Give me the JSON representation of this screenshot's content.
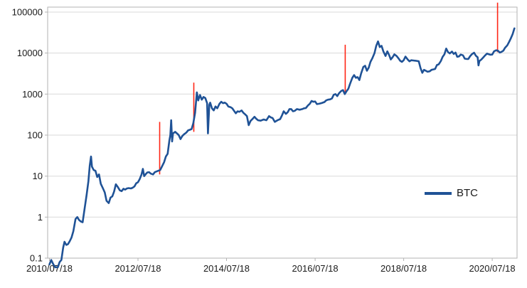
{
  "chart_data": {
    "type": "line",
    "title": "",
    "legend": {
      "label": "BTC",
      "position": "right-center"
    },
    "x_axis": {
      "scale": "time",
      "range": [
        2010.5,
        2021.1
      ],
      "tick_positions": [
        2010.54,
        2012.54,
        2014.54,
        2016.54,
        2018.54,
        2020.54
      ],
      "tick_labels": [
        "2010/07/18",
        "2012/07/18",
        "2014/07/18",
        "2016/07/18",
        "2018/07/18",
        "2020/07/18"
      ]
    },
    "y_axis": {
      "scale": "log",
      "range": [
        0.1,
        132000
      ],
      "tick_values": [
        0.1,
        1,
        10,
        100,
        1000,
        10000,
        100000
      ],
      "tick_labels": [
        "0.1",
        "1",
        "10",
        "100",
        "1000",
        "10000",
        "100000"
      ]
    },
    "series": [
      {
        "name": "BTC",
        "color": "#1f5296",
        "width": 2.6,
        "points": [
          [
            2010.54,
            0.07
          ],
          [
            2010.58,
            0.09
          ],
          [
            2010.63,
            0.07
          ],
          [
            2010.67,
            0.06
          ],
          [
            2010.73,
            0.06
          ],
          [
            2010.77,
            0.08
          ],
          [
            2010.81,
            0.09
          ],
          [
            2010.85,
            0.18
          ],
          [
            2010.88,
            0.25
          ],
          [
            2010.92,
            0.21
          ],
          [
            2010.96,
            0.22
          ],
          [
            2011.0,
            0.26
          ],
          [
            2011.04,
            0.32
          ],
          [
            2011.08,
            0.45
          ],
          [
            2011.13,
            0.9
          ],
          [
            2011.17,
            1.0
          ],
          [
            2011.21,
            0.85
          ],
          [
            2011.25,
            0.78
          ],
          [
            2011.29,
            0.75
          ],
          [
            2011.33,
            1.5
          ],
          [
            2011.38,
            3.5
          ],
          [
            2011.42,
            7.5
          ],
          [
            2011.45,
            18
          ],
          [
            2011.48,
            30
          ],
          [
            2011.5,
            17
          ],
          [
            2011.54,
            14
          ],
          [
            2011.58,
            13.5
          ],
          [
            2011.62,
            9.5
          ],
          [
            2011.66,
            11
          ],
          [
            2011.7,
            6.5
          ],
          [
            2011.75,
            5
          ],
          [
            2011.79,
            4
          ],
          [
            2011.83,
            2.5
          ],
          [
            2011.88,
            2.2
          ],
          [
            2011.92,
            3
          ],
          [
            2011.96,
            3.2
          ],
          [
            2012.0,
            4.2
          ],
          [
            2012.04,
            6.3
          ],
          [
            2012.08,
            5.5
          ],
          [
            2012.13,
            4.5
          ],
          [
            2012.17,
            4.3
          ],
          [
            2012.21,
            4.9
          ],
          [
            2012.25,
            4.7
          ],
          [
            2012.29,
            5
          ],
          [
            2012.33,
            5.1
          ],
          [
            2012.38,
            5
          ],
          [
            2012.42,
            5.2
          ],
          [
            2012.46,
            5.6
          ],
          [
            2012.5,
            6.7
          ],
          [
            2012.54,
            7.1
          ],
          [
            2012.58,
            8.5
          ],
          [
            2012.62,
            11
          ],
          [
            2012.65,
            15
          ],
          [
            2012.68,
            10
          ],
          [
            2012.71,
            11
          ],
          [
            2012.75,
            12.3
          ],
          [
            2012.79,
            12.5
          ],
          [
            2012.83,
            11.5
          ],
          [
            2012.88,
            11
          ],
          [
            2012.92,
            12.5
          ],
          [
            2012.96,
            13
          ],
          [
            2013.0,
            13.5
          ],
          [
            2013.04,
            14
          ],
          [
            2013.08,
            17
          ],
          [
            2013.13,
            22
          ],
          [
            2013.17,
            30
          ],
          [
            2013.21,
            35
          ],
          [
            2013.25,
            75
          ],
          [
            2013.27,
            100
          ],
          [
            2013.29,
            230
          ],
          [
            2013.31,
            70
          ],
          [
            2013.33,
            110
          ],
          [
            2013.38,
            120
          ],
          [
            2013.42,
            110
          ],
          [
            2013.46,
            100
          ],
          [
            2013.5,
            80
          ],
          [
            2013.54,
            95
          ],
          [
            2013.58,
            105
          ],
          [
            2013.63,
            115
          ],
          [
            2013.67,
            130
          ],
          [
            2013.71,
            135
          ],
          [
            2013.75,
            140
          ],
          [
            2013.79,
            195
          ],
          [
            2013.83,
            350
          ],
          [
            2013.87,
            1100
          ],
          [
            2013.9,
            700
          ],
          [
            2013.94,
            950
          ],
          [
            2013.98,
            730
          ],
          [
            2014.02,
            850
          ],
          [
            2014.06,
            800
          ],
          [
            2014.1,
            600
          ],
          [
            2014.12,
            110
          ],
          [
            2014.15,
            550
          ],
          [
            2014.17,
            620
          ],
          [
            2014.21,
            450
          ],
          [
            2014.25,
            400
          ],
          [
            2014.29,
            500
          ],
          [
            2014.33,
            450
          ],
          [
            2014.38,
            580
          ],
          [
            2014.42,
            650
          ],
          [
            2014.46,
            600
          ],
          [
            2014.5,
            620
          ],
          [
            2014.54,
            580
          ],
          [
            2014.58,
            500
          ],
          [
            2014.63,
            480
          ],
          [
            2014.67,
            450
          ],
          [
            2014.71,
            390
          ],
          [
            2014.75,
            340
          ],
          [
            2014.79,
            380
          ],
          [
            2014.83,
            370
          ],
          [
            2014.88,
            400
          ],
          [
            2014.92,
            350
          ],
          [
            2014.96,
            320
          ],
          [
            2015.0,
            290
          ],
          [
            2015.04,
            175
          ],
          [
            2015.08,
            220
          ],
          [
            2015.13,
            250
          ],
          [
            2015.17,
            280
          ],
          [
            2015.21,
            250
          ],
          [
            2015.25,
            230
          ],
          [
            2015.31,
            225
          ],
          [
            2015.38,
            240
          ],
          [
            2015.44,
            230
          ],
          [
            2015.5,
            290
          ],
          [
            2015.54,
            270
          ],
          [
            2015.58,
            260
          ],
          [
            2015.63,
            210
          ],
          [
            2015.69,
            230
          ],
          [
            2015.75,
            245
          ],
          [
            2015.79,
            300
          ],
          [
            2015.83,
            380
          ],
          [
            2015.88,
            330
          ],
          [
            2015.92,
            360
          ],
          [
            2015.96,
            430
          ],
          [
            2016.0,
            430
          ],
          [
            2016.04,
            380
          ],
          [
            2016.08,
            390
          ],
          [
            2016.13,
            430
          ],
          [
            2016.19,
            415
          ],
          [
            2016.25,
            430
          ],
          [
            2016.29,
            450
          ],
          [
            2016.33,
            455
          ],
          [
            2016.38,
            530
          ],
          [
            2016.42,
            580
          ],
          [
            2016.46,
            680
          ],
          [
            2016.5,
            650
          ],
          [
            2016.54,
            660
          ],
          [
            2016.58,
            570
          ],
          [
            2016.63,
            580
          ],
          [
            2016.69,
            605
          ],
          [
            2016.75,
            640
          ],
          [
            2016.79,
            700
          ],
          [
            2016.83,
            730
          ],
          [
            2016.88,
            745
          ],
          [
            2016.92,
            780
          ],
          [
            2016.96,
            960
          ],
          [
            2017.0,
            1000
          ],
          [
            2017.04,
            890
          ],
          [
            2017.08,
            1050
          ],
          [
            2017.13,
            1190
          ],
          [
            2017.17,
            1250
          ],
          [
            2017.21,
            1000
          ],
          [
            2017.25,
            1180
          ],
          [
            2017.29,
            1350
          ],
          [
            2017.33,
            1800
          ],
          [
            2017.38,
            2500
          ],
          [
            2017.42,
            2900
          ],
          [
            2017.46,
            2500
          ],
          [
            2017.5,
            2600
          ],
          [
            2017.54,
            2200
          ],
          [
            2017.58,
            3200
          ],
          [
            2017.63,
            4600
          ],
          [
            2017.67,
            4900
          ],
          [
            2017.71,
            3700
          ],
          [
            2017.75,
            4400
          ],
          [
            2017.79,
            6100
          ],
          [
            2017.83,
            7400
          ],
          [
            2017.88,
            9900
          ],
          [
            2017.92,
            15000
          ],
          [
            2017.96,
            19300
          ],
          [
            2018.0,
            14000
          ],
          [
            2018.04,
            15000
          ],
          [
            2018.08,
            11000
          ],
          [
            2018.13,
            8500
          ],
          [
            2018.17,
            11000
          ],
          [
            2018.21,
            9000
          ],
          [
            2018.25,
            7000
          ],
          [
            2018.29,
            7900
          ],
          [
            2018.33,
            9300
          ],
          [
            2018.38,
            8500
          ],
          [
            2018.42,
            7500
          ],
          [
            2018.46,
            6500
          ],
          [
            2018.5,
            6100
          ],
          [
            2018.54,
            6700
          ],
          [
            2018.58,
            8200
          ],
          [
            2018.63,
            7000
          ],
          [
            2018.67,
            6300
          ],
          [
            2018.71,
            6700
          ],
          [
            2018.75,
            6600
          ],
          [
            2018.81,
            6500
          ],
          [
            2018.88,
            6300
          ],
          [
            2018.92,
            4300
          ],
          [
            2018.96,
            3300
          ],
          [
            2019.0,
            3900
          ],
          [
            2019.04,
            3700
          ],
          [
            2019.08,
            3500
          ],
          [
            2019.13,
            3600
          ],
          [
            2019.17,
            3900
          ],
          [
            2019.21,
            4000
          ],
          [
            2019.25,
            4100
          ],
          [
            2019.29,
            5100
          ],
          [
            2019.33,
            5300
          ],
          [
            2019.38,
            6400
          ],
          [
            2019.42,
            8100
          ],
          [
            2019.46,
            9300
          ],
          [
            2019.5,
            12900
          ],
          [
            2019.54,
            10600
          ],
          [
            2019.58,
            9800
          ],
          [
            2019.63,
            10900
          ],
          [
            2019.67,
            9500
          ],
          [
            2019.71,
            10300
          ],
          [
            2019.75,
            8100
          ],
          [
            2019.79,
            8300
          ],
          [
            2019.83,
            9200
          ],
          [
            2019.88,
            8800
          ],
          [
            2019.92,
            7300
          ],
          [
            2019.96,
            7200
          ],
          [
            2020.0,
            7200
          ],
          [
            2020.04,
            8400
          ],
          [
            2020.08,
            9400
          ],
          [
            2020.13,
            10200
          ],
          [
            2020.17,
            8600
          ],
          [
            2020.21,
            7900
          ],
          [
            2020.23,
            5000
          ],
          [
            2020.25,
            6400
          ],
          [
            2020.29,
            6900
          ],
          [
            2020.33,
            7700
          ],
          [
            2020.38,
            8800
          ],
          [
            2020.42,
            9700
          ],
          [
            2020.46,
            9400
          ],
          [
            2020.5,
            9100
          ],
          [
            2020.54,
            9200
          ],
          [
            2020.58,
            11000
          ],
          [
            2020.63,
            11700
          ],
          [
            2020.67,
            11400
          ],
          [
            2020.71,
            10300
          ],
          [
            2020.75,
            10700
          ],
          [
            2020.79,
            11400
          ],
          [
            2020.83,
            13500
          ],
          [
            2020.88,
            15500
          ],
          [
            2020.92,
            18700
          ],
          [
            2020.96,
            23000
          ],
          [
            2021.0,
            29000
          ],
          [
            2021.04,
            40000
          ]
        ]
      }
    ],
    "event_markers": {
      "color": "#ff2616",
      "width": 1.6,
      "lines": [
        {
          "x": 2013.03,
          "from": 11,
          "to": 210
        },
        {
          "x": 2013.8,
          "from": 120,
          "to": 1900
        },
        {
          "x": 2017.22,
          "from": 1050,
          "to": 16000
        },
        {
          "x": 2020.66,
          "from": 10500,
          "to": 170000
        }
      ]
    },
    "grid": "horizontal-decades",
    "style": {
      "background": "#ffffff",
      "grid_color": "#d9d9d9",
      "axis_color": "#b3b3b3",
      "label_color": "#1a1a1a"
    }
  }
}
